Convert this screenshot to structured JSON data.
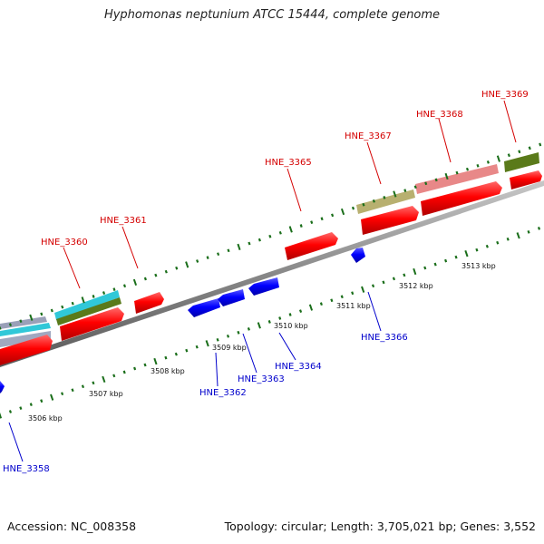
{
  "title": "Hyphomonas neptunium ATCC 15444, complete genome",
  "footer": {
    "accession": "Accession: NC_008358",
    "stats": "Topology: circular; Length: 3,705,021 bp; Genes: 3,552"
  },
  "colors": {
    "cds_forward": "#ff0000",
    "cds_reverse": "#0000ff",
    "tick": "#1a6e1a",
    "backbone": "#808080",
    "label_forward": "#d40000",
    "label_reverse": "#0000cc"
  },
  "scale_labels": [
    "3506 kbp",
    "3507 kbp",
    "3508 kbp",
    "3509 kbp",
    "3510 kbp",
    "3511 kbp",
    "3512 kbp",
    "3513 kbp"
  ],
  "top_genes": [
    "HNE_3360",
    "HNE_3361",
    "HNE_3365",
    "HNE_3367",
    "HNE_3368",
    "HNE_3369"
  ],
  "bottom_genes": [
    "HNE_3358",
    "HNE_3362",
    "HNE_3363",
    "HNE_3364",
    "HNE_3366"
  ]
}
